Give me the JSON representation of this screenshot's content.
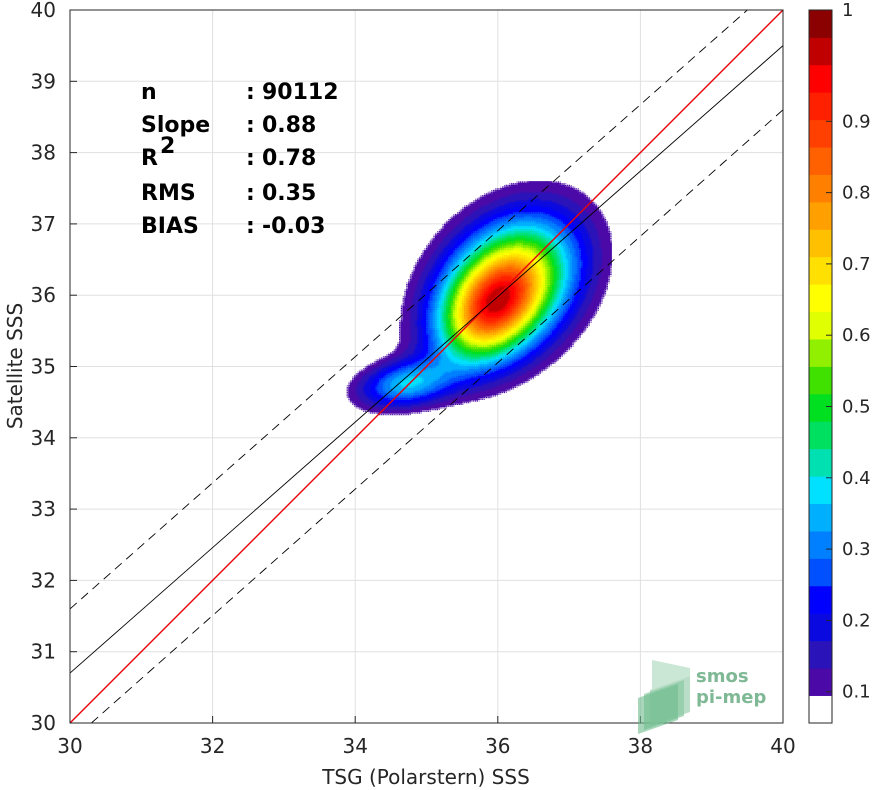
{
  "chart_data": {
    "type": "scatter",
    "subtype": "density-contour",
    "xlabel": "TSG (Polarstern) SSS",
    "ylabel": "Satellite SSS",
    "xlim": [
      30,
      40
    ],
    "ylim": [
      30,
      40
    ],
    "xticks": [
      "30",
      "32",
      "34",
      "36",
      "38",
      "40"
    ],
    "yticks": [
      "30",
      "31",
      "32",
      "33",
      "34",
      "35",
      "36",
      "37",
      "38",
      "39",
      "40"
    ],
    "grid": true,
    "stats": [
      {
        "label": "n",
        "sep": ":",
        "value": "90112"
      },
      {
        "label": "Slope",
        "sep": ":",
        "value": "0.88"
      },
      {
        "label": "R",
        "sup": "2",
        "sep": ":",
        "value": "0.78"
      },
      {
        "label": "RMS",
        "sep": ":",
        "value": "0.35"
      },
      {
        "label": "BIAS",
        "sep": ":",
        "value": "-0.03"
      }
    ],
    "lines": {
      "identity": {
        "color": "#e8000b",
        "from": [
          30,
          30
        ],
        "to": [
          40,
          40
        ]
      },
      "fit": {
        "color": "#000000",
        "from": [
          30,
          30.7
        ],
        "to": [
          40,
          39.5
        ]
      },
      "upper_bound": {
        "color": "#000000",
        "style": "dashed",
        "from": [
          30,
          31.6
        ],
        "to": [
          39.5,
          40
        ]
      },
      "lower_bound": {
        "color": "#000000",
        "style": "dashed",
        "from": [
          30.3,
          30
        ],
        "to": [
          40,
          38.6
        ]
      }
    },
    "density_clusters": [
      {
        "center": [
          36.15,
          36.15
        ],
        "spread": [
          0.75,
          0.55
        ],
        "angle": 45,
        "peak": 1.0
      },
      {
        "center": [
          35.85,
          35.7
        ],
        "spread": [
          0.55,
          0.4
        ],
        "angle": 50,
        "peak": 0.55
      },
      {
        "center": [
          34.7,
          34.75
        ],
        "spread": [
          0.45,
          0.22
        ],
        "angle": 10,
        "peak": 0.45
      }
    ],
    "colorbar": {
      "ticks": [
        "0.1",
        "0.2",
        "0.3",
        "0.4",
        "0.5",
        "0.6",
        "0.7",
        "0.8",
        "0.9",
        "1"
      ],
      "colors": [
        "#ffffff",
        "#4b0aa8",
        "#2a13b8",
        "#0a0ae0",
        "#0000ff",
        "#0050ff",
        "#0080ff",
        "#00b0ff",
        "#00e0ff",
        "#00e0b0",
        "#00e060",
        "#00e020",
        "#40e000",
        "#90f000",
        "#e0ff00",
        "#ffff00",
        "#ffe000",
        "#ffc000",
        "#ffa000",
        "#ff8000",
        "#ff6000",
        "#ff4000",
        "#ff2000",
        "#ff0000",
        "#c00000",
        "#8b0000"
      ]
    },
    "watermark": {
      "line1": "smos",
      "line2": "pi-mep"
    }
  }
}
